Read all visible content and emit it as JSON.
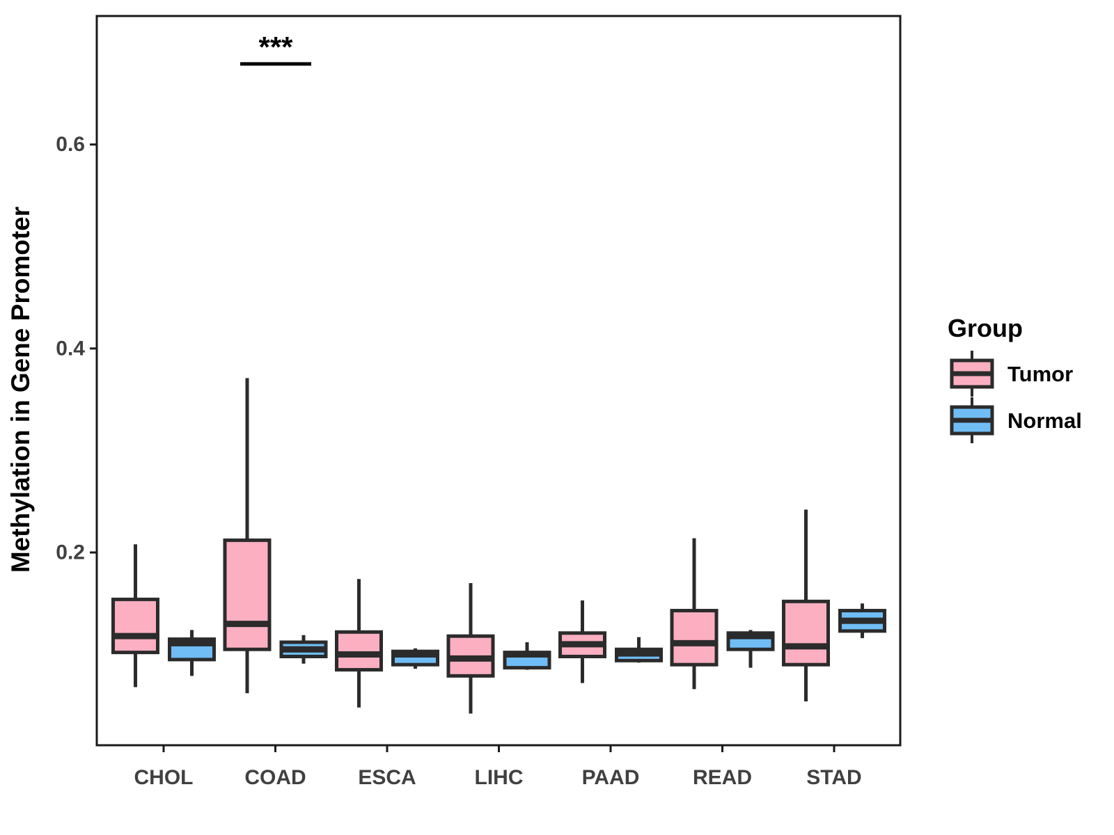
{
  "figure": {
    "ylabel": "Methylation in Gene Promoter",
    "xlabel": "",
    "legend": {
      "title": "Group",
      "items": [
        {
          "label": "Tumor",
          "color": "#FBAFC1"
        },
        {
          "label": "Normal",
          "color": "#70BDF6"
        }
      ]
    },
    "colors": {
      "tumor_fill": "#FBAFC1",
      "normal_fill": "#70BDF6",
      "box_border": "#2B2B2B",
      "axis": "#1A1A1A",
      "tick_label": "#404040",
      "text": "#000000",
      "panel_bg": "#FFFFFF"
    }
  },
  "chart_data": {
    "type": "boxplot",
    "title": "",
    "xlabel": "",
    "ylabel": "Methylation in Gene Promoter",
    "categories": [
      "CHOL",
      "COAD",
      "ESCA",
      "LIHC",
      "PAAD",
      "READ",
      "STAD"
    ],
    "groups": [
      "Tumor",
      "Normal"
    ],
    "ylim": [
      0.011,
      0.726
    ],
    "yticks": [
      {
        "value": 0.2,
        "label": "0.2"
      },
      {
        "value": 0.4,
        "label": "0.4"
      },
      {
        "value": 0.6,
        "label": "0.6"
      }
    ],
    "grid": "off",
    "legend_position": "right",
    "series": [
      {
        "name": "Tumor",
        "color": "#FBAFC1",
        "boxes": [
          {
            "category": "CHOL",
            "whisker_low": 0.068,
            "q1": 0.102,
            "median": 0.118,
            "q3": 0.154,
            "whisker_high": 0.208
          },
          {
            "category": "COAD",
            "whisker_low": 0.062,
            "q1": 0.105,
            "median": 0.13,
            "q3": 0.212,
            "whisker_high": 0.371
          },
          {
            "category": "ESCA",
            "whisker_low": 0.048,
            "q1": 0.085,
            "median": 0.1,
            "q3": 0.122,
            "whisker_high": 0.174
          },
          {
            "category": "LIHC",
            "whisker_low": 0.042,
            "q1": 0.079,
            "median": 0.096,
            "q3": 0.118,
            "whisker_high": 0.17
          },
          {
            "category": "PAAD",
            "whisker_low": 0.072,
            "q1": 0.098,
            "median": 0.11,
            "q3": 0.121,
            "whisker_high": 0.153
          },
          {
            "category": "READ",
            "whisker_low": 0.066,
            "q1": 0.09,
            "median": 0.111,
            "q3": 0.143,
            "whisker_high": 0.214
          },
          {
            "category": "STAD",
            "whisker_low": 0.054,
            "q1": 0.09,
            "median": 0.108,
            "q3": 0.152,
            "whisker_high": 0.242
          }
        ]
      },
      {
        "name": "Normal",
        "color": "#70BDF6",
        "boxes": [
          {
            "category": "CHOL",
            "whisker_low": 0.079,
            "q1": 0.095,
            "median": 0.111,
            "q3": 0.115,
            "whisker_high": 0.124
          },
          {
            "category": "COAD",
            "whisker_low": 0.091,
            "q1": 0.098,
            "median": 0.105,
            "q3": 0.112,
            "whisker_high": 0.119
          },
          {
            "category": "ESCA",
            "whisker_low": 0.086,
            "q1": 0.09,
            "median": 0.1,
            "q3": 0.103,
            "whisker_high": 0.106
          },
          {
            "category": "LIHC",
            "whisker_low": 0.085,
            "q1": 0.087,
            "median": 0.1,
            "q3": 0.102,
            "whisker_high": 0.112
          },
          {
            "category": "PAAD",
            "whisker_low": 0.092,
            "q1": 0.094,
            "median": 0.101,
            "q3": 0.105,
            "whisker_high": 0.117
          },
          {
            "category": "READ",
            "whisker_low": 0.087,
            "q1": 0.105,
            "median": 0.118,
            "q3": 0.121,
            "whisker_high": 0.124
          },
          {
            "category": "STAD",
            "whisker_low": 0.116,
            "q1": 0.123,
            "median": 0.133,
            "q3": 0.143,
            "whisker_high": 0.15
          }
        ]
      }
    ],
    "annotations": [
      {
        "category": "COAD",
        "label": "***",
        "bar_y": 0.679
      }
    ]
  }
}
